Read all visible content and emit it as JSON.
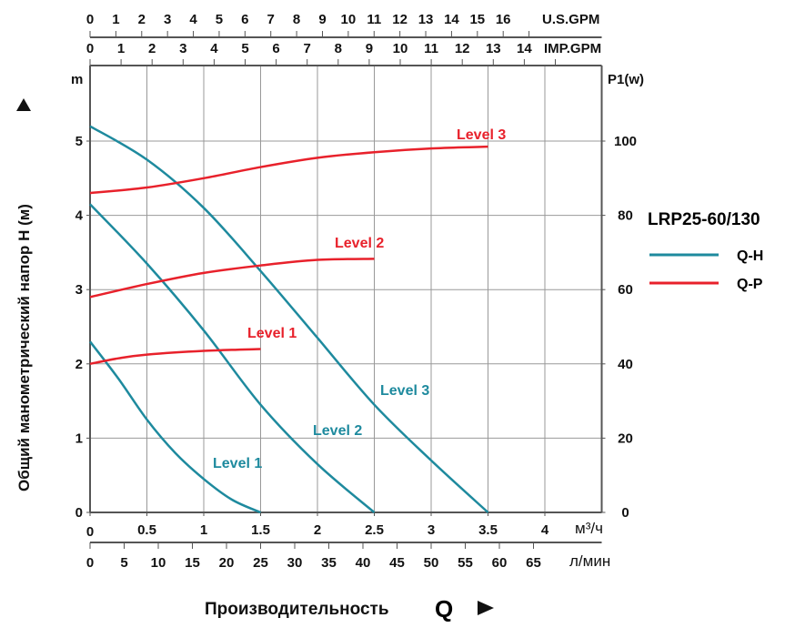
{
  "chart_data": {
    "type": "line",
    "xlabel": "Производительность",
    "xlabel_symbol": "Q",
    "ylabel": "Общий манометрический напор H (м)",
    "y_left_unit": "m",
    "y_right_unit": "P1(w)",
    "x_unit": "м³/ч",
    "x_lmin_unit": "л/мин",
    "x_usgpm_unit": "U.S.GPM",
    "x_impgpm_unit": "IMP.GPM",
    "xlim": [
      0,
      4.5
    ],
    "ylim": [
      0,
      6
    ],
    "y2lim": [
      0,
      120
    ],
    "x_ticks": [
      "0",
      "0.5",
      "1",
      "1.5",
      "2",
      "2.5",
      "3",
      "3.5",
      "4"
    ],
    "y_ticks": [
      "0",
      "1",
      "2",
      "3",
      "4",
      "5"
    ],
    "y2_ticks": [
      "0",
      "20",
      "40",
      "60",
      "80",
      "100"
    ],
    "lmin_ticks": [
      "0",
      "5",
      "10",
      "15",
      "20",
      "25",
      "30",
      "35",
      "40",
      "45",
      "50",
      "55",
      "60",
      "65"
    ],
    "usgpm_ticks": [
      "0",
      "1",
      "2",
      "3",
      "4",
      "5",
      "6",
      "7",
      "8",
      "9",
      "10",
      "11",
      "12",
      "13",
      "14",
      "15",
      "16"
    ],
    "impgpm_ticks": [
      "0",
      "1",
      "2",
      "3",
      "4",
      "5",
      "6",
      "7",
      "8",
      "9",
      "10",
      "11",
      "12",
      "13",
      "14"
    ],
    "grid": true,
    "legend": {
      "title": "LRP25-60/130",
      "placement": "right",
      "entries": [
        {
          "name": "Q-H",
          "color": "#1e8a9e"
        },
        {
          "name": "Q-P",
          "color": "#e8212b"
        }
      ]
    },
    "series": [
      {
        "name": "Level 1",
        "kind": "Q-H",
        "color": "#1e8a9e",
        "x": [
          0,
          0.25,
          0.5,
          0.75,
          1,
          1.25,
          1.5
        ],
        "y": [
          2.3,
          1.8,
          1.25,
          0.8,
          0.45,
          0.17,
          0
        ]
      },
      {
        "name": "Level 2",
        "kind": "Q-H",
        "color": "#1e8a9e",
        "x": [
          0,
          0.5,
          1,
          1.5,
          2,
          2.5
        ],
        "y": [
          4.15,
          3.35,
          2.45,
          1.45,
          0.65,
          0
        ]
      },
      {
        "name": "Level 3",
        "kind": "Q-H",
        "color": "#1e8a9e",
        "x": [
          0,
          0.5,
          1,
          1.5,
          2,
          2.5,
          3,
          3.5
        ],
        "y": [
          5.2,
          4.75,
          4.1,
          3.25,
          2.35,
          1.45,
          0.7,
          0
        ]
      },
      {
        "name": "Level 1",
        "kind": "Q-P",
        "color": "#e8212b",
        "x": [
          0,
          0.25,
          0.5,
          1,
          1.5
        ],
        "y": [
          40,
          41.5,
          42.5,
          43.5,
          44
        ]
      },
      {
        "name": "Level 2",
        "kind": "Q-P",
        "color": "#e8212b",
        "x": [
          0,
          0.5,
          1,
          1.5,
          2,
          2.5
        ],
        "y": [
          58,
          61.5,
          64.5,
          66.5,
          68,
          68.3
        ]
      },
      {
        "name": "Level 3",
        "kind": "Q-P",
        "color": "#e8212b",
        "x": [
          0,
          0.5,
          1,
          1.5,
          2,
          2.5,
          3,
          3.5
        ],
        "y": [
          86,
          87.5,
          90,
          93,
          95.5,
          97,
          98,
          98.5
        ]
      }
    ]
  }
}
